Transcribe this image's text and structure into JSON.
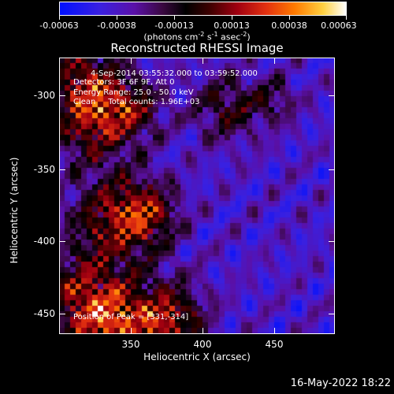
{
  "colorbar": {
    "ticks": [
      "-0.00063",
      "-0.00038",
      "-0.00013",
      "0.00013",
      "0.00038",
      "0.00063"
    ],
    "units_prefix": "(photons cm",
    "units_cm_exp": "-2",
    "units_s": " s",
    "units_s_exp": "-1",
    "units_asec": " asec",
    "units_asec_exp": "-2",
    "units_suffix": ")"
  },
  "title": "Reconstructed RHESSI Image",
  "info": {
    "time_range": "4-Sep-2014 03:55:32.000 to 03:59:52.000",
    "detectors": "Detectors: 3F 6F 9F, Att 0",
    "energy": "Energy Range: 25.0 - 50.0 keV",
    "clean": "Clean     Total counts: 1.96E+03",
    "peak": "Position of Peak = [331,-314]"
  },
  "axes": {
    "xlabel": "Heliocentric X (arcsec)",
    "ylabel": "Heliocentric Y (arcsec)",
    "xticks": [
      "350",
      "400",
      "450"
    ],
    "yticks": [
      "-300",
      "-350",
      "-400",
      "-450"
    ]
  },
  "timestamp": "16-May-2022 18:22"
}
